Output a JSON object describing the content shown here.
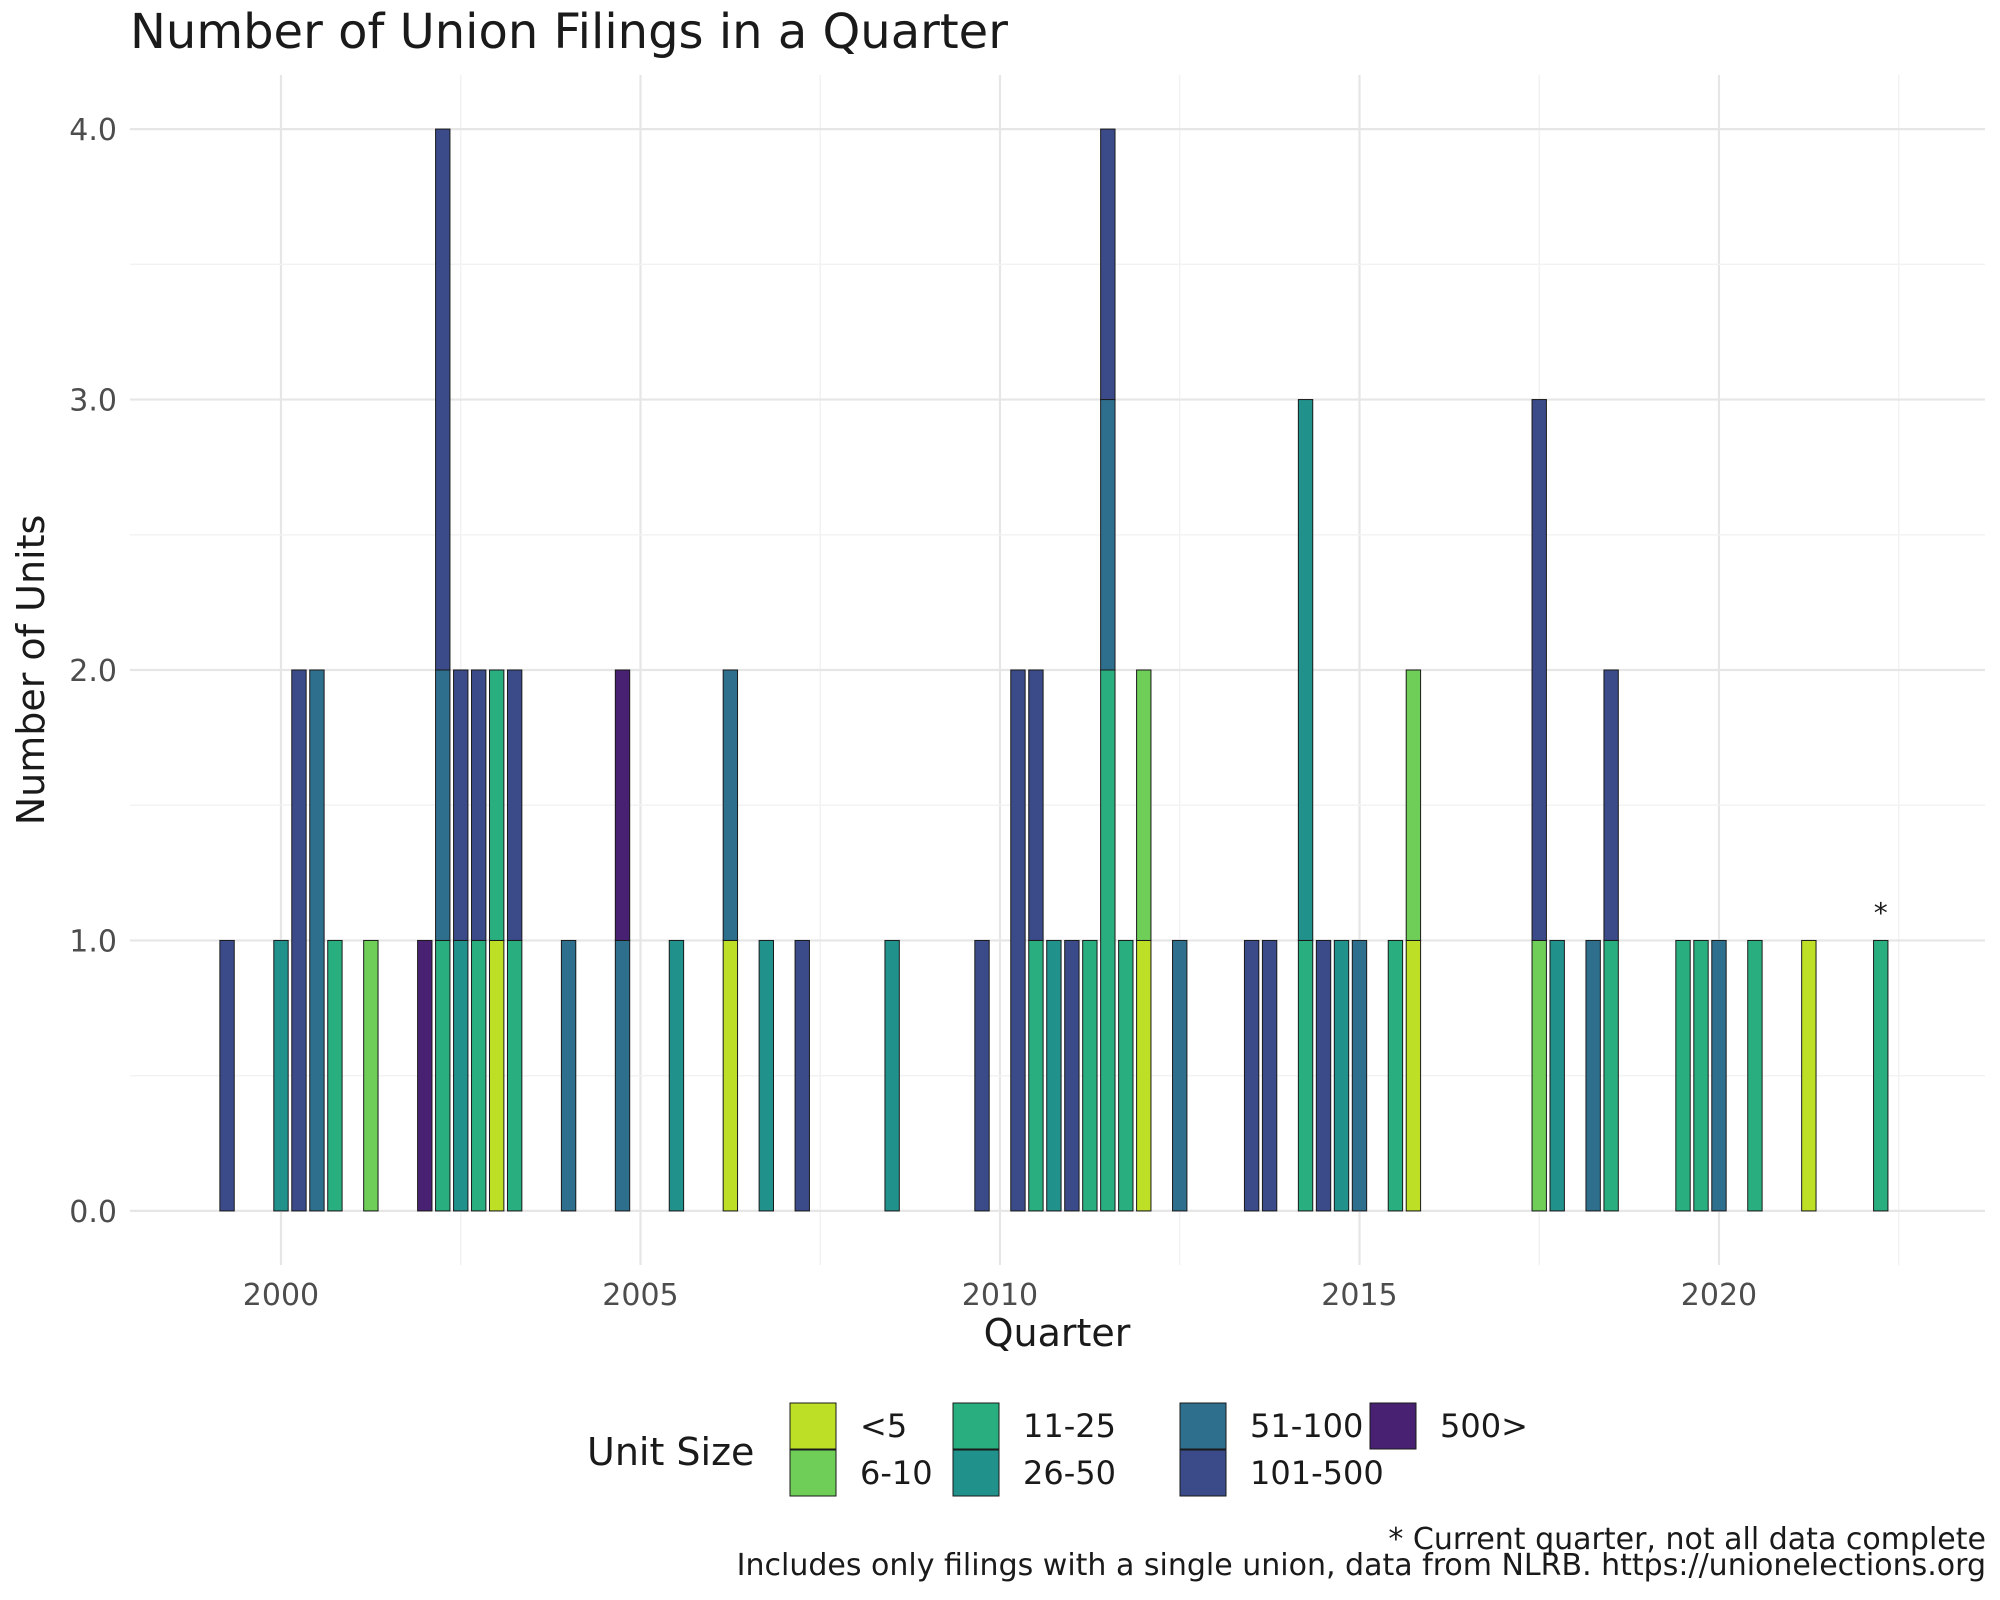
{
  "chart_data": {
    "type": "bar",
    "stacked": true,
    "title": "Number of Union Filings in a Quarter",
    "xlabel": "Quarter",
    "ylabel": "Number of Units",
    "xlim": [
      1997.9,
      2023.7
    ],
    "ylim": [
      -0.2,
      4.2
    ],
    "x_ticks": [
      2000,
      2005,
      2010,
      2015,
      2020
    ],
    "y_ticks": [
      0,
      1,
      2,
      3,
      4
    ],
    "y_tick_labels": [
      "0.0",
      "1.0",
      "2.0",
      "3.0",
      "4.0"
    ],
    "grid": true,
    "legend": {
      "title": "Unit Size",
      "position": "bottom",
      "entries": [
        {
          "label": "<5",
          "color": "#bddf26"
        },
        {
          "label": "6-10",
          "color": "#6ece58"
        },
        {
          "label": "11-25",
          "color": "#29af7f"
        },
        {
          "label": "26-50",
          "color": "#21918c"
        },
        {
          "label": "51-100",
          "color": "#2e6f8e"
        },
        {
          "label": "101-500",
          "color": "#3b4b8a"
        },
        {
          "label": "500>",
          "color": "#482173"
        }
      ]
    },
    "series_order": [
      "<5",
      "6-10",
      "11-25",
      "26-50",
      "51-100",
      "101-500",
      "500>"
    ],
    "bars": [
      {
        "x": 1999.25,
        "counts": {
          "101-500": 1
        }
      },
      {
        "x": 2000.0,
        "counts": {
          "26-50": 1
        }
      },
      {
        "x": 2000.25,
        "counts": {
          "101-500": 2
        }
      },
      {
        "x": 2000.5,
        "counts": {
          "51-100": 2
        }
      },
      {
        "x": 2000.75,
        "counts": {
          "11-25": 1
        }
      },
      {
        "x": 2001.25,
        "counts": {
          "6-10": 1
        }
      },
      {
        "x": 2002.0,
        "counts": {
          "500>": 1
        }
      },
      {
        "x": 2002.25,
        "counts": {
          "11-25": 1,
          "51-100": 1,
          "101-500": 2
        }
      },
      {
        "x": 2002.5,
        "counts": {
          "26-50": 1,
          "101-500": 1
        }
      },
      {
        "x": 2002.75,
        "counts": {
          "11-25": 1,
          "101-500": 1
        }
      },
      {
        "x": 2003.0,
        "counts": {
          "<5": 1,
          "11-25": 1
        }
      },
      {
        "x": 2003.25,
        "counts": {
          "11-25": 1,
          "101-500": 1
        }
      },
      {
        "x": 2004.0,
        "counts": {
          "51-100": 1
        }
      },
      {
        "x": 2004.75,
        "counts": {
          "51-100": 1,
          "500>": 1
        }
      },
      {
        "x": 2005.5,
        "counts": {
          "26-50": 1
        }
      },
      {
        "x": 2006.25,
        "counts": {
          "<5": 1,
          "51-100": 1
        }
      },
      {
        "x": 2006.75,
        "counts": {
          "26-50": 1
        }
      },
      {
        "x": 2007.25,
        "counts": {
          "101-500": 1
        }
      },
      {
        "x": 2008.5,
        "counts": {
          "26-50": 1
        }
      },
      {
        "x": 2009.75,
        "counts": {
          "101-500": 1
        }
      },
      {
        "x": 2010.25,
        "counts": {
          "101-500": 2
        }
      },
      {
        "x": 2010.5,
        "counts": {
          "11-25": 1,
          "101-500": 1
        }
      },
      {
        "x": 2010.75,
        "counts": {
          "26-50": 1
        }
      },
      {
        "x": 2011.0,
        "counts": {
          "101-500": 1
        }
      },
      {
        "x": 2011.25,
        "counts": {
          "11-25": 1
        }
      },
      {
        "x": 2011.5,
        "counts": {
          "11-25": 2,
          "51-100": 1,
          "101-500": 1
        }
      },
      {
        "x": 2011.75,
        "counts": {
          "11-25": 1
        }
      },
      {
        "x": 2012.0,
        "counts": {
          "<5": 1,
          "6-10": 1
        }
      },
      {
        "x": 2012.5,
        "counts": {
          "51-100": 1
        }
      },
      {
        "x": 2013.5,
        "counts": {
          "101-500": 1
        }
      },
      {
        "x": 2013.75,
        "counts": {
          "101-500": 1
        }
      },
      {
        "x": 2014.25,
        "counts": {
          "11-25": 1,
          "26-50": 2
        }
      },
      {
        "x": 2014.5,
        "counts": {
          "101-500": 1
        }
      },
      {
        "x": 2014.75,
        "counts": {
          "26-50": 1
        }
      },
      {
        "x": 2015.0,
        "counts": {
          "51-100": 1
        }
      },
      {
        "x": 2015.5,
        "counts": {
          "11-25": 1
        }
      },
      {
        "x": 2015.75,
        "counts": {
          "<5": 1,
          "6-10": 1
        }
      },
      {
        "x": 2017.5,
        "counts": {
          "6-10": 1,
          "101-500": 2
        }
      },
      {
        "x": 2017.75,
        "counts": {
          "26-50": 1
        }
      },
      {
        "x": 2018.25,
        "counts": {
          "51-100": 1
        }
      },
      {
        "x": 2018.5,
        "counts": {
          "11-25": 1,
          "101-500": 1
        }
      },
      {
        "x": 2019.5,
        "counts": {
          "11-25": 1
        }
      },
      {
        "x": 2019.75,
        "counts": {
          "11-25": 1
        }
      },
      {
        "x": 2020.0,
        "counts": {
          "51-100": 1
        }
      },
      {
        "x": 2020.5,
        "counts": {
          "11-25": 1
        }
      },
      {
        "x": 2021.25,
        "counts": {
          "<5": 1
        }
      },
      {
        "x": 2022.25,
        "counts": {
          "11-25": 1
        }
      }
    ],
    "annotations": [
      {
        "text": "*",
        "x": 2022.25,
        "y": 1.0
      }
    ]
  },
  "captions": {
    "note": "* Current quarter, not all data complete",
    "source": "Includes only filings with a single union, data from NLRB. https://unionelections.org"
  }
}
